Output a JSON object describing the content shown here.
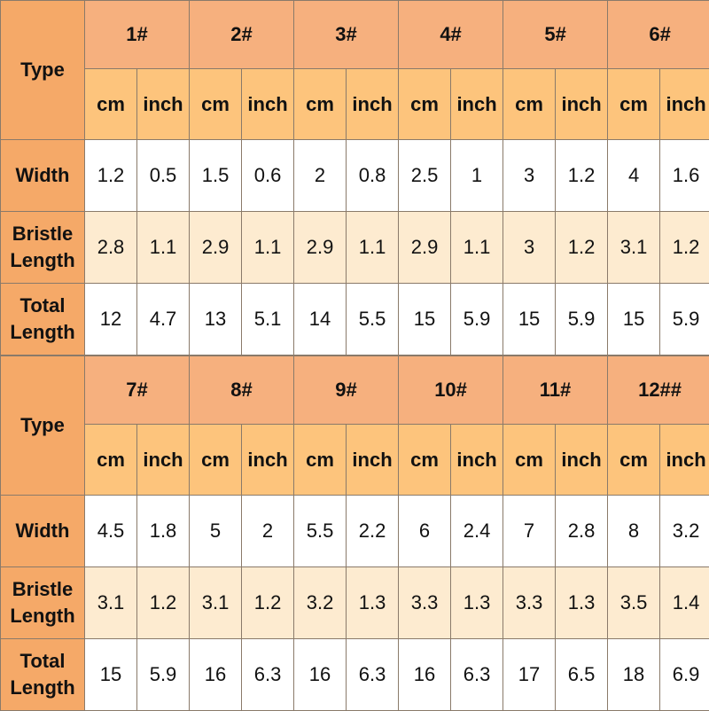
{
  "colors": {
    "label_column": "#F5A968",
    "size_header": "#F6B07E",
    "unit_header": "#FDC47C",
    "bristle_row": "#FDEBD0",
    "plain_row": "#FFFFFF"
  },
  "blocks": [
    {
      "type_label": "Type",
      "sizes": [
        "1#",
        "2#",
        "3#",
        "4#",
        "5#",
        "6#"
      ],
      "units": [
        "cm",
        "inch"
      ],
      "rows": [
        {
          "label": "Width",
          "values": [
            "1.2",
            "0.5",
            "1.5",
            "0.6",
            "2",
            "0.8",
            "2.5",
            "1",
            "3",
            "1.2",
            "4",
            "1.6"
          ]
        },
        {
          "label": "Bristle Length",
          "values": [
            "2.8",
            "1.1",
            "2.9",
            "1.1",
            "2.9",
            "1.1",
            "2.9",
            "1.1",
            "3",
            "1.2",
            "3.1",
            "1.2"
          ]
        },
        {
          "label": "Total Length",
          "values": [
            "12",
            "4.7",
            "13",
            "5.1",
            "14",
            "5.5",
            "15",
            "5.9",
            "15",
            "5.9",
            "15",
            "5.9"
          ]
        }
      ]
    },
    {
      "type_label": "Type",
      "sizes": [
        "7#",
        "8#",
        "9#",
        "10#",
        "11#",
        "12##"
      ],
      "units": [
        "cm",
        "inch"
      ],
      "rows": [
        {
          "label": "Width",
          "values": [
            "4.5",
            "1.8",
            "5",
            "2",
            "5.5",
            "2.2",
            "6",
            "2.4",
            "7",
            "2.8",
            "8",
            "3.2"
          ]
        },
        {
          "label": "Bristle Length",
          "values": [
            "3.1",
            "1.2",
            "3.1",
            "1.2",
            "3.2",
            "1.3",
            "3.3",
            "1.3",
            "3.3",
            "1.3",
            "3.5",
            "1.4"
          ]
        },
        {
          "label": "Total Length",
          "values": [
            "15",
            "5.9",
            "16",
            "6.3",
            "16",
            "6.3",
            "16",
            "6.3",
            "17",
            "6.5",
            "18",
            "6.9"
          ]
        }
      ]
    }
  ]
}
